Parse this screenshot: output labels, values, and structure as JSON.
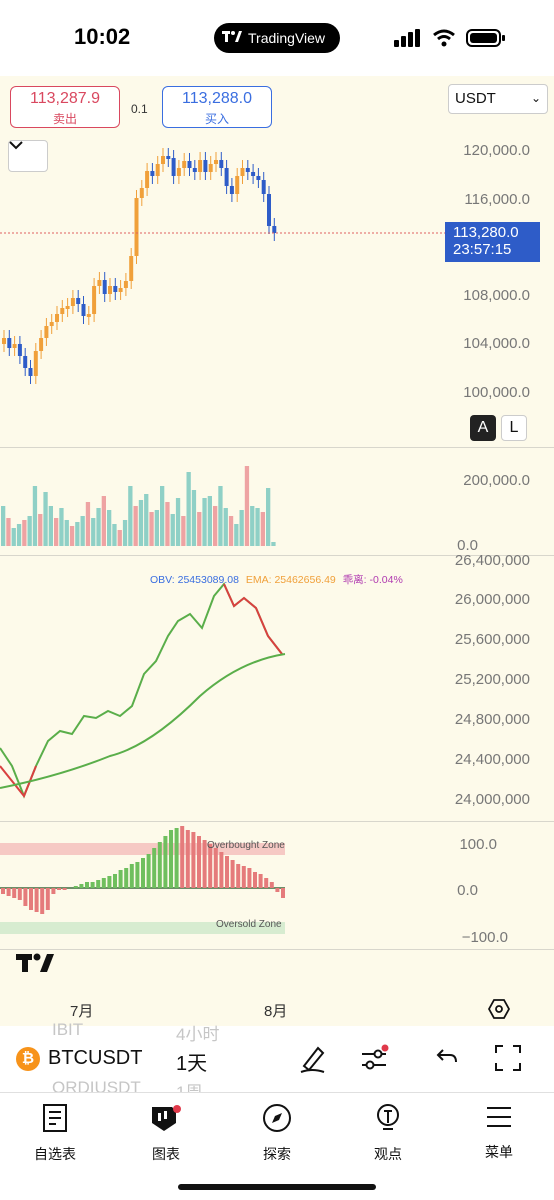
{
  "status_bar": {
    "time": "10:02",
    "app_badge": "TradingView"
  },
  "order_panel": {
    "ask_price": "113,287.9",
    "ask_label": "卖出",
    "spread": "0.1",
    "bid_price": "113,288.0",
    "bid_label": "买入",
    "currency": "USDT"
  },
  "price_axis": [
    "120,000.0",
    "116,000.0",
    "108,000.0",
    "104,000.0",
    "100,000.0"
  ],
  "last_price": {
    "price": "113,280.0",
    "countdown": "23:57:15"
  },
  "scale_buttons": {
    "auto": "A",
    "log": "L"
  },
  "volume_axis": [
    "200,000.0",
    "0.0"
  ],
  "obv_legend": {
    "obv": "OBV: 25453089.08",
    "ema": "EMA: 25462656.49",
    "dev": "乖离: -0.04%"
  },
  "obv_axis": [
    "26,400,000",
    "26,000,000",
    "25,600,000",
    "25,200,000",
    "24,800,000",
    "24,400,000",
    "24,000,000"
  ],
  "osc_axis": [
    "100.0",
    "0.0",
    "−100.0"
  ],
  "zones": {
    "overbought": "Overbought Zone",
    "oversold": "Oversold Zone"
  },
  "time_axis": [
    "7月",
    "8月"
  ],
  "symbol_bar": {
    "symbol": "BTCUSDT",
    "interval": "1天",
    "ghost_symbols": [
      "IBIT",
      "ORDIUSDT"
    ],
    "ghost_intervals": [
      "4小时",
      "1周"
    ]
  },
  "nav": [
    {
      "label": "自选表",
      "icon": "watchlist-icon"
    },
    {
      "label": "图表",
      "icon": "chart-icon"
    },
    {
      "label": "探索",
      "icon": "compass-icon"
    },
    {
      "label": "观点",
      "icon": "ideas-icon"
    },
    {
      "label": "菜单",
      "icon": "menu-icon"
    }
  ],
  "colors": {
    "up": "#f0a03a",
    "down": "#2e5cc8",
    "vol_up": "#8fd0c6",
    "vol_down": "#eea3a3",
    "obv_up": "#5aae4a",
    "obv_down": "#d94040",
    "bg": "#fdfaea"
  }
}
